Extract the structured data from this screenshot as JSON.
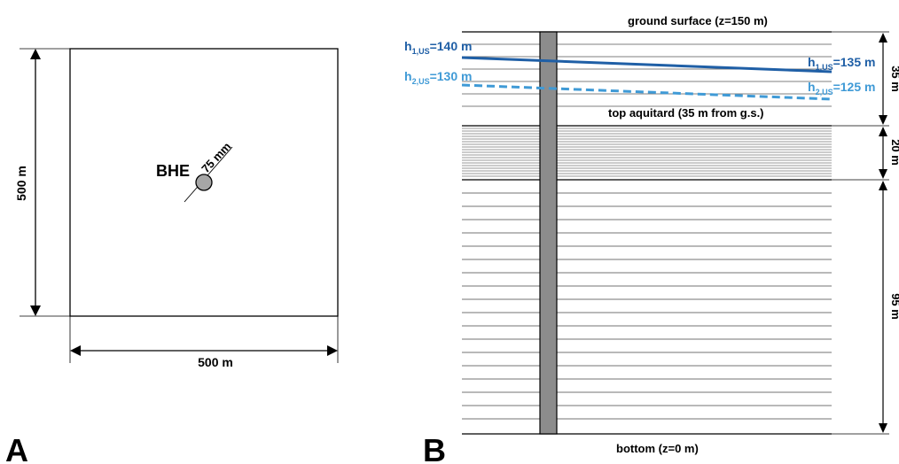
{
  "panel_a": {
    "letter": "A",
    "width_label": "500 m",
    "height_label": "500 m",
    "bhe_label": "BHE",
    "diameter_label": "75 mm"
  },
  "panel_b": {
    "letter": "B",
    "ground_surface": "ground surface (z=150 m)",
    "bottom": "bottom (z=0 m)",
    "top_aquitard": "top aquitard (35 m from g.s.)",
    "h1_left_main": "h",
    "h1_left_sub": "1,US",
    "h1_left_value": "=140 m",
    "h1_right_main": "h",
    "h1_right_sub": "1,US",
    "h1_right_value": "=135 m",
    "h2_left_main": "h",
    "h2_left_sub": "2,US",
    "h2_left_value": "=130 m",
    "h2_right_main": "h",
    "h2_right_sub": "2,US",
    "h2_right_value": "=125 m",
    "dim_upper": "35 m",
    "dim_middle": "20 m",
    "dim_lower": "95 m"
  },
  "colors": {
    "h1_line": "#1f5fa6",
    "h2_line": "#3f9ad6",
    "borehole_fill": "#8c8c8c",
    "bhe_fill": "#a6a6a6"
  }
}
